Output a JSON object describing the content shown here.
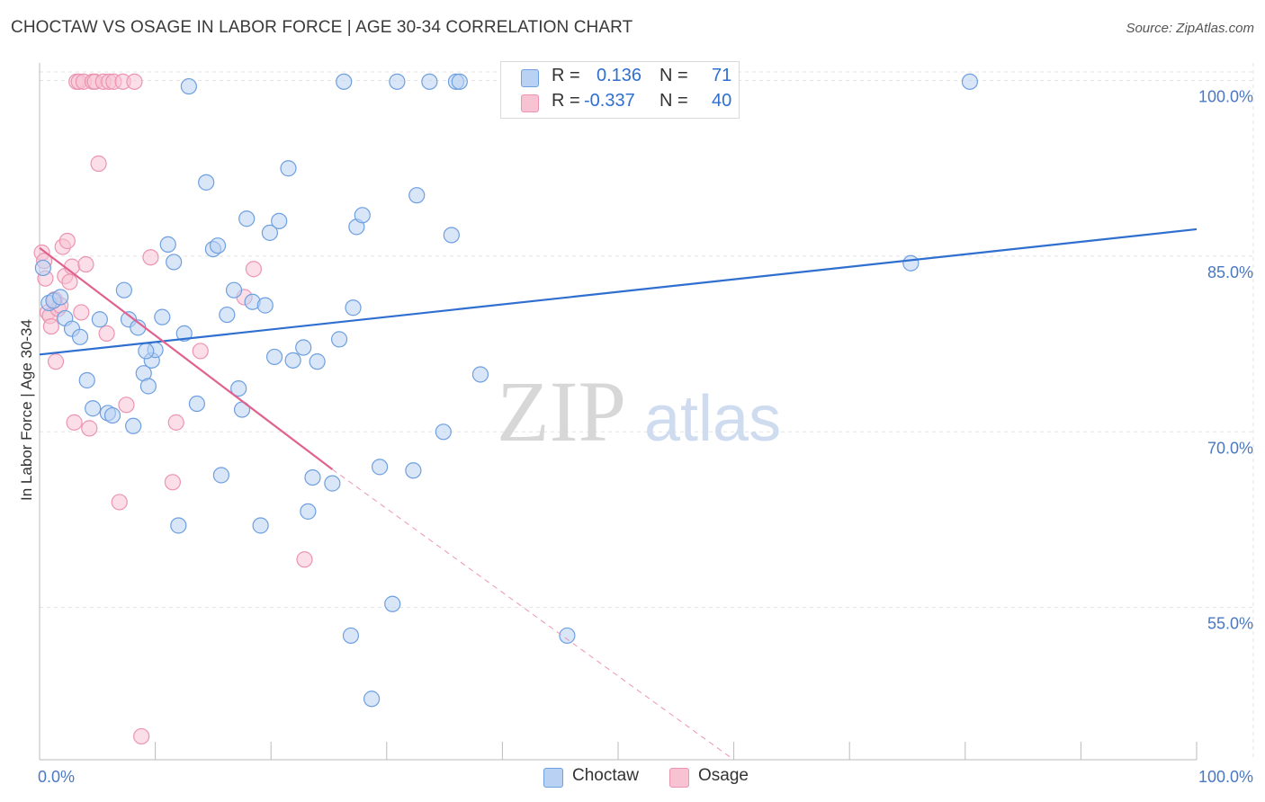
{
  "header": {
    "title": "CHOCTAW VS OSAGE IN LABOR FORCE | AGE 30-34 CORRELATION CHART",
    "source": "Source: ZipAtlas.com"
  },
  "watermark": {
    "zip": "ZIP",
    "atlas": "atlas"
  },
  "legend": {
    "rows": [
      {
        "r_label": "R =",
        "r_value": "0.136",
        "n_label": "N =",
        "n_value": "71"
      },
      {
        "r_label": "R =",
        "r_value": "-0.337",
        "n_label": "N =",
        "n_value": "40"
      }
    ]
  },
  "bottom_legend": {
    "choctaw": "Choctaw",
    "osage": "Osage"
  },
  "colors": {
    "choctaw_fill": "#b9d1f2",
    "choctaw_stroke": "#6e9fe0",
    "choctaw_line": "#2f6fcf",
    "osage_fill": "#f7c3d3",
    "osage_stroke": "#ec94b1",
    "osage_line": "#e0628e",
    "grid": "#e3e3e3",
    "tick_label": "#4a78c2"
  },
  "chart_data": {
    "type": "scatter",
    "title": "CHOCTAW VS OSAGE IN LABOR FORCE | AGE 30-34 CORRELATION CHART",
    "xlabel": "",
    "ylabel": "In Labor Force | Age 30-34",
    "xlim": [
      0,
      100
    ],
    "ylim": [
      42,
      101.5
    ],
    "x_tick_labels": [
      "0.0%",
      "100.0%"
    ],
    "y_ticks": [
      55,
      70,
      85,
      100
    ],
    "y_tick_labels": [
      "55.0%",
      "70.0%",
      "85.0%",
      "100.0%"
    ],
    "grid": true,
    "legend_position": "top-center",
    "series": [
      {
        "name": "Choctaw",
        "r": 0.136,
        "n": 71,
        "trend": {
          "x": [
            0,
            100
          ],
          "y": [
            76.6,
            87.3
          ],
          "style": "solid"
        },
        "points": [
          [
            0.3,
            84.0
          ],
          [
            0.8,
            81.0
          ],
          [
            1.2,
            81.2
          ],
          [
            1.8,
            81.5
          ],
          [
            2.2,
            79.7
          ],
          [
            2.8,
            78.8
          ],
          [
            3.5,
            78.1
          ],
          [
            4.1,
            74.4
          ],
          [
            4.6,
            72.0
          ],
          [
            5.2,
            79.6
          ],
          [
            5.9,
            71.6
          ],
          [
            6.3,
            71.4
          ],
          [
            7.3,
            82.1
          ],
          [
            7.7,
            79.6
          ],
          [
            8.1,
            70.5
          ],
          [
            8.5,
            78.9
          ],
          [
            9.0,
            75.0
          ],
          [
            9.4,
            73.9
          ],
          [
            9.7,
            76.1
          ],
          [
            10.0,
            77.0
          ],
          [
            10.6,
            79.8
          ],
          [
            11.1,
            86.0
          ],
          [
            11.6,
            84.5
          ],
          [
            12.5,
            78.4
          ],
          [
            12.9,
            99.5
          ],
          [
            13.6,
            72.4
          ],
          [
            14.4,
            91.3
          ],
          [
            15.0,
            85.6
          ],
          [
            15.4,
            85.9
          ],
          [
            15.7,
            66.3
          ],
          [
            16.2,
            80.0
          ],
          [
            16.8,
            82.1
          ],
          [
            17.2,
            73.7
          ],
          [
            17.5,
            71.9
          ],
          [
            17.9,
            88.2
          ],
          [
            18.4,
            81.1
          ],
          [
            19.1,
            62.0
          ],
          [
            19.5,
            80.8
          ],
          [
            19.9,
            87.0
          ],
          [
            20.3,
            76.4
          ],
          [
            20.7,
            88.0
          ],
          [
            21.5,
            92.5
          ],
          [
            21.9,
            76.1
          ],
          [
            22.8,
            77.2
          ],
          [
            23.2,
            63.2
          ],
          [
            23.6,
            66.1
          ],
          [
            24.0,
            76.0
          ],
          [
            25.3,
            65.6
          ],
          [
            25.9,
            77.9
          ],
          [
            26.9,
            52.6
          ],
          [
            26.3,
            99.9
          ],
          [
            27.1,
            80.6
          ],
          [
            27.4,
            87.5
          ],
          [
            27.9,
            88.5
          ],
          [
            28.7,
            47.2
          ],
          [
            29.4,
            67.0
          ],
          [
            30.5,
            55.3
          ],
          [
            30.9,
            99.9
          ],
          [
            32.3,
            66.7
          ],
          [
            32.6,
            90.2
          ],
          [
            33.7,
            99.9
          ],
          [
            34.9,
            70.0
          ],
          [
            35.6,
            86.8
          ],
          [
            36.0,
            99.9
          ],
          [
            36.3,
            99.9
          ],
          [
            38.1,
            74.9
          ],
          [
            45.6,
            52.6
          ],
          [
            75.3,
            84.4
          ],
          [
            80.4,
            99.9
          ],
          [
            12.0,
            62.0
          ],
          [
            9.2,
            76.9
          ]
        ]
      },
      {
        "name": "Osage",
        "r": -0.337,
        "n": 40,
        "trend": {
          "x": [
            0,
            25.3
          ],
          "y": [
            85.7,
            66.8
          ],
          "style": "solid",
          "extension": {
            "x": [
              25.3,
              60.0
            ],
            "y": [
              66.8,
              42.0
            ],
            "style": "dashed"
          }
        },
        "points": [
          [
            0.2,
            85.3
          ],
          [
            0.4,
            84.6
          ],
          [
            0.5,
            83.1
          ],
          [
            0.7,
            80.2
          ],
          [
            0.9,
            79.9
          ],
          [
            1.0,
            79.0
          ],
          [
            1.3,
            81.3
          ],
          [
            1.4,
            76.0
          ],
          [
            1.6,
            80.5
          ],
          [
            1.8,
            80.8
          ],
          [
            2.0,
            85.8
          ],
          [
            2.2,
            83.3
          ],
          [
            2.4,
            86.3
          ],
          [
            2.6,
            82.8
          ],
          [
            2.8,
            84.1
          ],
          [
            3.0,
            70.8
          ],
          [
            3.2,
            99.9
          ],
          [
            3.4,
            99.9
          ],
          [
            3.6,
            80.2
          ],
          [
            3.8,
            99.9
          ],
          [
            4.0,
            84.3
          ],
          [
            4.3,
            70.3
          ],
          [
            4.6,
            99.9
          ],
          [
            4.8,
            99.9
          ],
          [
            5.1,
            92.9
          ],
          [
            5.5,
            99.9
          ],
          [
            5.8,
            78.4
          ],
          [
            6.0,
            99.9
          ],
          [
            6.4,
            99.9
          ],
          [
            6.9,
            64.0
          ],
          [
            7.2,
            99.9
          ],
          [
            7.5,
            72.3
          ],
          [
            8.2,
            99.9
          ],
          [
            8.8,
            44.0
          ],
          [
            9.6,
            84.9
          ],
          [
            11.8,
            70.8
          ],
          [
            11.5,
            65.7
          ],
          [
            13.9,
            76.9
          ],
          [
            17.7,
            81.5
          ],
          [
            18.5,
            83.9
          ]
        ]
      }
    ],
    "extra_points_osage": [
      [
        22.9,
        59.1
      ]
    ]
  }
}
